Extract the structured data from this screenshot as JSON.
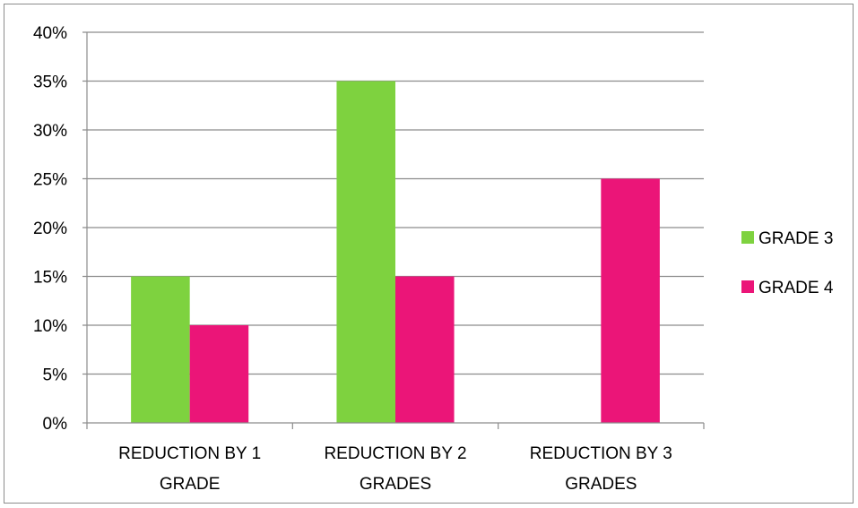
{
  "chart_data": {
    "type": "bar",
    "categories": [
      [
        "REDUCTION BY 1",
        "GRADE"
      ],
      [
        "REDUCTION BY 2",
        "GRADES"
      ],
      [
        "REDUCTION BY 3",
        "GRADES"
      ]
    ],
    "series": [
      {
        "name": "GRADE 3",
        "color": "#7ed23f",
        "values": [
          15,
          35,
          0
        ]
      },
      {
        "name": "GRADE 4",
        "color": "#eb1578",
        "values": [
          10,
          15,
          25
        ]
      }
    ],
    "y_ticks": [
      "0%",
      "5%",
      "10%",
      "15%",
      "20%",
      "25%",
      "30%",
      "35%",
      "40%"
    ],
    "ylim": [
      0,
      40
    ],
    "y_unit": "%",
    "grid": true,
    "gridline_color": "#8c8c8c",
    "legend_position": "right"
  }
}
